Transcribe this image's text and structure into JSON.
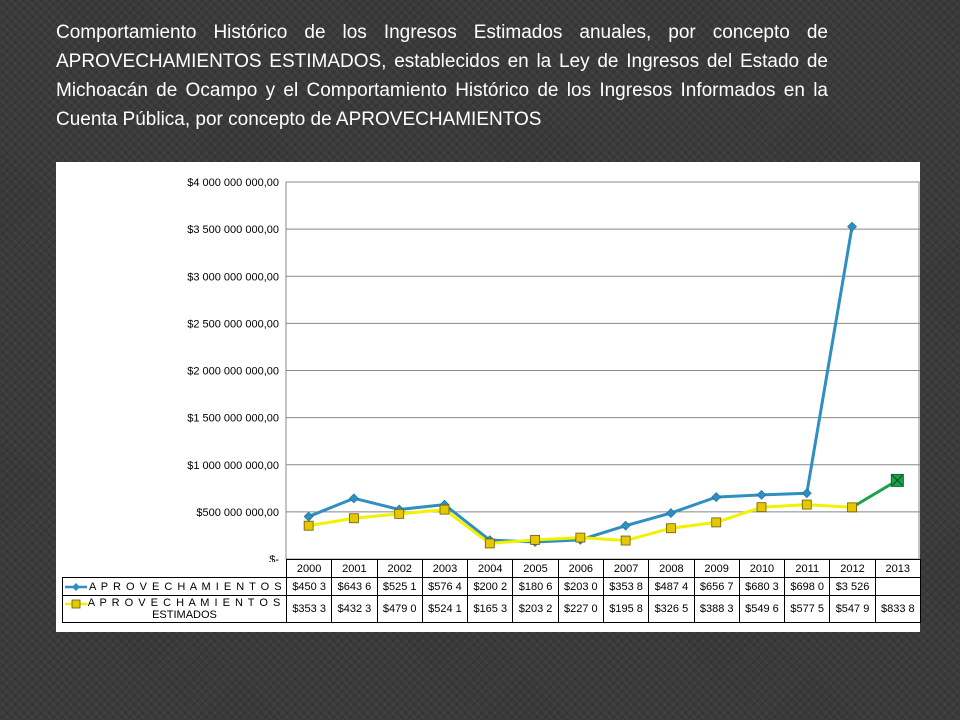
{
  "title": {
    "part1": "Comportamiento Histórico de los Ingresos Estimados anuales, por concepto de ",
    "part2": "APROVECHAMIENTOS ESTIMADOS",
    "part3": ", establecidos en la Ley de Ingresos del Estado de Michoacán de Ocampo y el Comportamiento Histórico de los Ingresos Informados en la Cuenta Pública, por concepto de ",
    "part4": "APROVECHAMIENTOS"
  },
  "colors": {
    "series_actual": "#2e8fc0",
    "series_estimated_line": "#f2f200",
    "series_estimated_marker": "#e6c800",
    "last_segment": "#1aa34a",
    "gridline": "#888888"
  },
  "chart_data": {
    "type": "line",
    "categories": [
      "2000",
      "2001",
      "2002",
      "2003",
      "2004",
      "2005",
      "2006",
      "2007",
      "2008",
      "2009",
      "2010",
      "2011",
      "2012",
      "2013"
    ],
    "y_tick_labels": [
      "$4 000 000 000,00",
      "$3 500 000 000,00",
      "$3 000 000 000,00",
      "$2 500 000 000,00",
      "$2 000 000 000,00",
      "$1 500 000 000,00",
      "$1 000 000 000,00",
      "$500 000 000,00",
      "$-"
    ],
    "ylim": [
      0,
      4000000000
    ],
    "grid": true,
    "series": [
      {
        "name": "A P R O V E C H A M I E N T O S",
        "values": [
          450300000,
          643600000,
          525100000,
          576400000,
          200200000,
          180600000,
          203000000,
          353800000,
          487400000,
          656700000,
          680300000,
          698000000,
          3526000000,
          null
        ],
        "table_labels": [
          "$450 3",
          "$643 6",
          "$525 1",
          "$576 4",
          "$200 2",
          "$180 6",
          "$203 0",
          "$353 8",
          "$487 4",
          "$656 7",
          "$680 3",
          "$698 0",
          "$3 526",
          ""
        ]
      },
      {
        "name_line1": "A P R O V E C H A M I E N T O S",
        "name_line2": "ESTIMADOS",
        "values": [
          353300000,
          432300000,
          479000000,
          524100000,
          165300000,
          203200000,
          227000000,
          195800000,
          326500000,
          388300000,
          549600000,
          577500000,
          547900000,
          833800000
        ],
        "table_labels": [
          "$353 3",
          "$432 3",
          "$479 0",
          "$524 1",
          "$165 3",
          "$203 2",
          "$227 0",
          "$195 8",
          "$326 5",
          "$388 3",
          "$549 6",
          "$577 5",
          "$547 9",
          "$833 8"
        ]
      }
    ]
  }
}
